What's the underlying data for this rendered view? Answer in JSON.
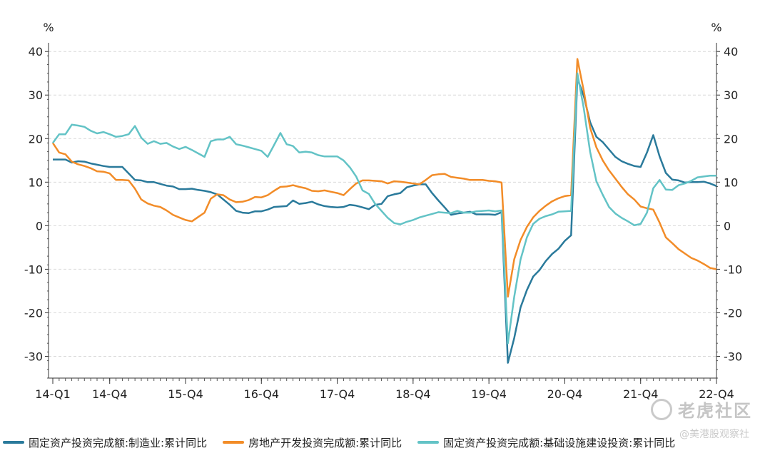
{
  "chart_data": {
    "type": "line",
    "title": "",
    "y_unit_left": "%",
    "y_unit_right": "%",
    "ylim": [
      -35,
      42
    ],
    "yticks": [
      40,
      30,
      20,
      10,
      0,
      -10,
      -20,
      -30
    ],
    "grid": "horizontal dashed",
    "legend_position": "bottom",
    "x_tick_labels": [
      "14-Q1",
      "14-Q4",
      "15-Q4",
      "16-Q4",
      "17-Q4",
      "18-Q4",
      "19-Q4",
      "20-Q4",
      "21-Q4",
      "22-Q4"
    ],
    "x_tick_index": [
      0,
      9,
      21,
      33,
      45,
      57,
      69,
      81,
      93,
      105
    ],
    "series": [
      {
        "name": "固定资产投资完成额:制造业:累计同比",
        "color": "#2a7a9b",
        "points": [
          [
            0,
            15.2
          ],
          [
            1,
            15.2
          ],
          [
            2,
            15.2
          ],
          [
            3,
            14.5
          ],
          [
            4,
            14.8
          ],
          [
            5,
            14.7
          ],
          [
            6,
            14.3
          ],
          [
            7,
            14.0
          ],
          [
            8,
            13.7
          ],
          [
            9,
            13.5
          ],
          [
            10,
            13.5
          ],
          [
            11,
            13.5
          ],
          [
            12,
            12.0
          ],
          [
            13,
            10.5
          ],
          [
            14,
            10.4
          ],
          [
            15,
            10.0
          ],
          [
            16,
            10.0
          ],
          [
            17,
            9.6
          ],
          [
            18,
            9.2
          ],
          [
            19,
            9.0
          ],
          [
            20,
            8.4
          ],
          [
            21,
            8.4
          ],
          [
            22,
            8.5
          ],
          [
            23,
            8.2
          ],
          [
            24,
            8.0
          ],
          [
            25,
            7.7
          ],
          [
            26,
            7.2
          ],
          [
            27,
            6.0
          ],
          [
            28,
            4.8
          ],
          [
            29,
            3.4
          ],
          [
            30,
            3.0
          ],
          [
            31,
            2.9
          ],
          [
            32,
            3.3
          ],
          [
            33,
            3.3
          ],
          [
            34,
            3.7
          ],
          [
            35,
            4.3
          ],
          [
            36,
            4.4
          ],
          [
            37,
            4.5
          ],
          [
            38,
            5.8
          ],
          [
            39,
            5.0
          ],
          [
            40,
            5.2
          ],
          [
            41,
            5.5
          ],
          [
            42,
            4.9
          ],
          [
            43,
            4.5
          ],
          [
            44,
            4.3
          ],
          [
            45,
            4.2
          ],
          [
            46,
            4.3
          ],
          [
            47,
            4.8
          ],
          [
            48,
            4.6
          ],
          [
            49,
            4.2
          ],
          [
            50,
            3.8
          ],
          [
            51,
            4.8
          ],
          [
            52,
            5.0
          ],
          [
            53,
            6.8
          ],
          [
            54,
            7.2
          ],
          [
            55,
            7.5
          ],
          [
            56,
            8.8
          ],
          [
            57,
            9.2
          ],
          [
            58,
            9.5
          ],
          [
            59,
            9.5
          ],
          [
            60,
            7.5
          ],
          [
            61,
            5.8
          ],
          [
            62,
            4.2
          ],
          [
            63,
            2.5
          ],
          [
            64,
            2.8
          ],
          [
            65,
            3.0
          ],
          [
            66,
            3.2
          ],
          [
            67,
            2.6
          ],
          [
            68,
            2.6
          ],
          [
            69,
            2.6
          ],
          [
            70,
            2.5
          ],
          [
            71,
            3.1
          ],
          [
            72,
            -31.5
          ],
          [
            73,
            -25.8
          ],
          [
            74,
            -18.8
          ],
          [
            75,
            -14.8
          ],
          [
            76,
            -11.7
          ],
          [
            77,
            -10.2
          ],
          [
            78,
            -8.1
          ],
          [
            79,
            -6.5
          ],
          [
            80,
            -5.3
          ],
          [
            81,
            -3.5
          ],
          [
            82,
            -2.2
          ],
          [
            83,
            33.8
          ],
          [
            84,
            29.8
          ],
          [
            85,
            23.8
          ],
          [
            86,
            20.4
          ],
          [
            87,
            19.2
          ],
          [
            88,
            17.5
          ],
          [
            89,
            15.8
          ],
          [
            90,
            14.8
          ],
          [
            91,
            14.2
          ],
          [
            92,
            13.7
          ],
          [
            93,
            13.5
          ],
          [
            94,
            16.8
          ],
          [
            95,
            20.8
          ],
          [
            96,
            15.9
          ],
          [
            97,
            12.1
          ],
          [
            98,
            10.6
          ],
          [
            99,
            10.4
          ],
          [
            100,
            9.9
          ],
          [
            101,
            10.0
          ],
          [
            102,
            10.0
          ],
          [
            103,
            10.1
          ],
          [
            104,
            9.7
          ],
          [
            105,
            9.1
          ]
        ]
      },
      {
        "name": "房地产开发投资完成额:累计同比",
        "color": "#f28c28",
        "points": [
          [
            0,
            19.0
          ],
          [
            1,
            16.8
          ],
          [
            2,
            16.4
          ],
          [
            3,
            14.7
          ],
          [
            4,
            14.1
          ],
          [
            5,
            13.7
          ],
          [
            6,
            13.2
          ],
          [
            7,
            12.5
          ],
          [
            8,
            12.4
          ],
          [
            9,
            12.0
          ],
          [
            10,
            10.5
          ],
          [
            11,
            10.5
          ],
          [
            12,
            10.4
          ],
          [
            13,
            8.5
          ],
          [
            14,
            6.0
          ],
          [
            15,
            5.1
          ],
          [
            16,
            4.6
          ],
          [
            17,
            4.3
          ],
          [
            18,
            3.5
          ],
          [
            19,
            2.5
          ],
          [
            20,
            1.9
          ],
          [
            21,
            1.3
          ],
          [
            22,
            1.0
          ],
          [
            23,
            2.0
          ],
          [
            24,
            3.0
          ],
          [
            25,
            6.2
          ],
          [
            26,
            7.2
          ],
          [
            27,
            7.0
          ],
          [
            28,
            6.0
          ],
          [
            29,
            5.4
          ],
          [
            30,
            5.5
          ],
          [
            31,
            5.9
          ],
          [
            32,
            6.6
          ],
          [
            33,
            6.5
          ],
          [
            34,
            7.0
          ],
          [
            35,
            8.0
          ],
          [
            36,
            8.9
          ],
          [
            37,
            9.0
          ],
          [
            38,
            9.3
          ],
          [
            39,
            8.9
          ],
          [
            40,
            8.6
          ],
          [
            41,
            8.0
          ],
          [
            42,
            7.9
          ],
          [
            43,
            8.1
          ],
          [
            44,
            7.8
          ],
          [
            45,
            7.5
          ],
          [
            46,
            7.0
          ],
          [
            47,
            8.4
          ],
          [
            48,
            9.7
          ],
          [
            49,
            10.4
          ],
          [
            50,
            10.4
          ],
          [
            51,
            10.3
          ],
          [
            52,
            10.2
          ],
          [
            53,
            9.7
          ],
          [
            54,
            10.2
          ],
          [
            55,
            10.1
          ],
          [
            56,
            9.9
          ],
          [
            57,
            9.7
          ],
          [
            58,
            9.5
          ],
          [
            59,
            10.5
          ],
          [
            60,
            11.6
          ],
          [
            61,
            11.8
          ],
          [
            62,
            11.9
          ],
          [
            63,
            11.2
          ],
          [
            64,
            11.0
          ],
          [
            65,
            10.8
          ],
          [
            66,
            10.5
          ],
          [
            67,
            10.5
          ],
          [
            68,
            10.5
          ],
          [
            69,
            10.3
          ],
          [
            70,
            10.2
          ],
          [
            71,
            9.9
          ],
          [
            72,
            -16.3
          ],
          [
            73,
            -7.7
          ],
          [
            74,
            -3.3
          ],
          [
            75,
            -0.3
          ],
          [
            76,
            1.9
          ],
          [
            77,
            3.4
          ],
          [
            78,
            4.6
          ],
          [
            79,
            5.6
          ],
          [
            80,
            6.3
          ],
          [
            81,
            6.8
          ],
          [
            82,
            7.0
          ],
          [
            83,
            38.3
          ],
          [
            84,
            31.0
          ],
          [
            85,
            22.5
          ],
          [
            86,
            18.0
          ],
          [
            87,
            15.0
          ],
          [
            88,
            12.7
          ],
          [
            89,
            10.8
          ],
          [
            90,
            8.9
          ],
          [
            91,
            7.2
          ],
          [
            92,
            6.0
          ],
          [
            93,
            4.4
          ],
          [
            94,
            4.0
          ],
          [
            95,
            3.7
          ],
          [
            96,
            0.7
          ],
          [
            97,
            -2.7
          ],
          [
            98,
            -4.0
          ],
          [
            99,
            -5.4
          ],
          [
            100,
            -6.4
          ],
          [
            101,
            -7.4
          ],
          [
            102,
            -8.0
          ],
          [
            103,
            -8.8
          ],
          [
            104,
            -9.7
          ],
          [
            105,
            -10.0
          ]
        ]
      },
      {
        "name": "固定资产投资完成额:基础设施建设投资:累计同比",
        "color": "#63c3c6",
        "points": [
          [
            0,
            19.0
          ],
          [
            1,
            21.0
          ],
          [
            2,
            21.0
          ],
          [
            3,
            23.2
          ],
          [
            4,
            23.0
          ],
          [
            5,
            22.7
          ],
          [
            6,
            21.8
          ],
          [
            7,
            21.2
          ],
          [
            8,
            21.5
          ],
          [
            9,
            21.0
          ],
          [
            10,
            20.4
          ],
          [
            11,
            20.6
          ],
          [
            12,
            21.0
          ],
          [
            13,
            22.9
          ],
          [
            14,
            20.2
          ],
          [
            15,
            18.8
          ],
          [
            16,
            19.4
          ],
          [
            17,
            18.8
          ],
          [
            18,
            19.0
          ],
          [
            19,
            18.2
          ],
          [
            20,
            17.6
          ],
          [
            21,
            18.1
          ],
          [
            22,
            17.4
          ],
          [
            23,
            16.6
          ],
          [
            24,
            15.8
          ],
          [
            25,
            19.4
          ],
          [
            26,
            19.8
          ],
          [
            27,
            19.8
          ],
          [
            28,
            20.4
          ],
          [
            29,
            18.7
          ],
          [
            30,
            18.4
          ],
          [
            31,
            18.0
          ],
          [
            32,
            17.6
          ],
          [
            33,
            17.2
          ],
          [
            34,
            15.8
          ],
          [
            35,
            18.5
          ],
          [
            36,
            21.3
          ],
          [
            37,
            18.7
          ],
          [
            38,
            18.3
          ],
          [
            39,
            16.8
          ],
          [
            40,
            17.0
          ],
          [
            41,
            16.8
          ],
          [
            42,
            16.2
          ],
          [
            43,
            15.9
          ],
          [
            44,
            15.9
          ],
          [
            45,
            15.9
          ],
          [
            46,
            15.0
          ],
          [
            47,
            13.4
          ],
          [
            48,
            11.3
          ],
          [
            49,
            8.1
          ],
          [
            50,
            7.3
          ],
          [
            51,
            5.0
          ],
          [
            52,
            3.4
          ],
          [
            53,
            1.8
          ],
          [
            54,
            0.6
          ],
          [
            55,
            0.3
          ],
          [
            56,
            0.9
          ],
          [
            57,
            1.3
          ],
          [
            58,
            1.9
          ],
          [
            59,
            2.3
          ],
          [
            60,
            2.7
          ],
          [
            61,
            3.1
          ],
          [
            62,
            3.0
          ],
          [
            63,
            2.9
          ],
          [
            64,
            3.4
          ],
          [
            65,
            3.0
          ],
          [
            66,
            3.0
          ],
          [
            67,
            3.3
          ],
          [
            68,
            3.4
          ],
          [
            69,
            3.5
          ],
          [
            70,
            3.3
          ],
          [
            71,
            3.5
          ],
          [
            72,
            -27.0
          ],
          [
            73,
            -16.3
          ],
          [
            74,
            -7.8
          ],
          [
            75,
            -2.7
          ],
          [
            76,
            0.4
          ],
          [
            77,
            1.6
          ],
          [
            78,
            2.2
          ],
          [
            79,
            2.6
          ],
          [
            80,
            3.2
          ],
          [
            81,
            3.3
          ],
          [
            82,
            3.4
          ],
          [
            83,
            35.0
          ],
          [
            84,
            27.0
          ],
          [
            85,
            17.0
          ],
          [
            86,
            10.2
          ],
          [
            87,
            7.1
          ],
          [
            88,
            4.3
          ],
          [
            89,
            2.8
          ],
          [
            90,
            1.8
          ],
          [
            91,
            1.0
          ],
          [
            92,
            0.1
          ],
          [
            93,
            0.4
          ],
          [
            94,
            3.0
          ],
          [
            95,
            8.6
          ],
          [
            96,
            10.5
          ],
          [
            97,
            8.3
          ],
          [
            98,
            8.2
          ],
          [
            99,
            9.3
          ],
          [
            100,
            9.7
          ],
          [
            101,
            10.3
          ],
          [
            102,
            11.1
          ],
          [
            103,
            11.3
          ],
          [
            104,
            11.5
          ],
          [
            105,
            11.5
          ]
        ]
      }
    ]
  },
  "legend": {
    "items": [
      {
        "label": "固定资产投资完成额:制造业:累计同比",
        "color": "#2a7a9b"
      },
      {
        "label": "房地产开发投资完成额:累计同比",
        "color": "#f28c28"
      },
      {
        "label": "固定资产投资完成额:基础设施建设投资:累计同比",
        "color": "#63c3c6"
      }
    ]
  },
  "watermark": {
    "main": "老虎社区",
    "sub": "@美港股观察社"
  }
}
